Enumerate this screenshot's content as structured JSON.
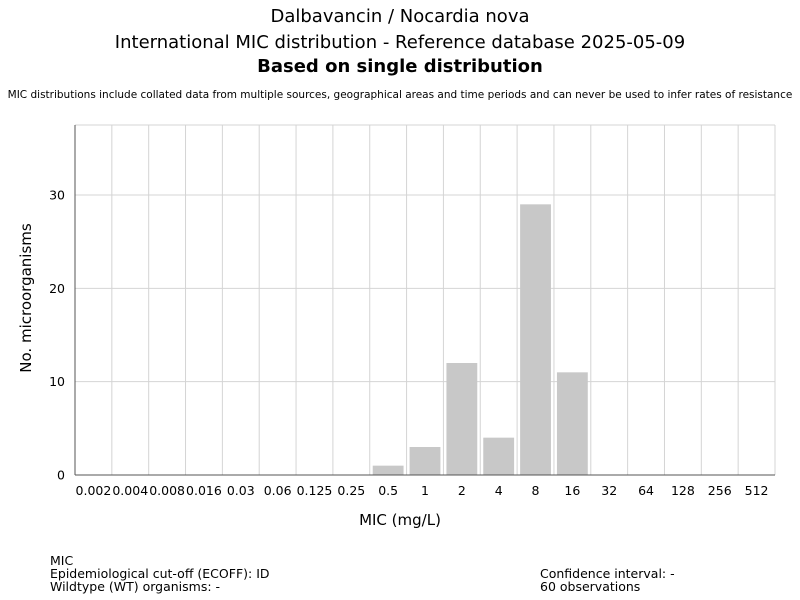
{
  "title_line1": "Dalbavancin / Nocardia nova",
  "title_line2": "International MIC distribution - Reference database 2025-05-09",
  "title_line3": "Based on single distribution",
  "subtitle": "MIC distributions include collated data from multiple sources, geographical areas and time periods and can never be used to infer rates of resistance",
  "footer": {
    "mic_label": "MIC",
    "ecoff": "Epidemiological cut-off (ECOFF): ID",
    "wildtype": "Wildtype (WT) organisms:  -",
    "confidence": "Confidence interval: -",
    "observations": "60 observations"
  },
  "colors": {
    "bar": "#c8c8c8",
    "grid": "#d4d4d4",
    "axis": "#555555"
  },
  "chart_data": {
    "type": "bar",
    "title": "Dalbavancin / Nocardia nova",
    "xlabel": "MIC (mg/L)",
    "ylabel": "No. microorganisms",
    "categories": [
      "0.002",
      "0.004",
      "0.008",
      "0.016",
      "0.03",
      "0.06",
      "0.125",
      "0.25",
      "0.5",
      "1",
      "2",
      "4",
      "8",
      "16",
      "32",
      "64",
      "128",
      "256",
      "512"
    ],
    "values": [
      0,
      0,
      0,
      0,
      0,
      0,
      0,
      0,
      1,
      3,
      12,
      4,
      29,
      11,
      0,
      0,
      0,
      0,
      0
    ],
    "ylim": [
      0,
      37.5
    ],
    "yticks": [
      0,
      10,
      20,
      30
    ],
    "grid": true
  }
}
